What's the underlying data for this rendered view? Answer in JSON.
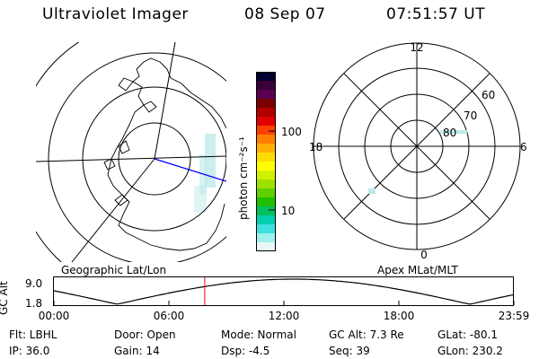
{
  "header": {
    "instrument": "Ultraviolet Imager",
    "date": "08 Sep 07",
    "time": "07:51:57 UT"
  },
  "geo_panel": {
    "label": "Geographic Lat/Lon"
  },
  "mag_panel": {
    "label": "Apex MLat/MLT",
    "mlt_labels": {
      "top": "12",
      "left": "18",
      "right": "6",
      "bottom": "0"
    },
    "lat_labels": [
      "60",
      "70",
      "80"
    ]
  },
  "colorbar": {
    "unit_label": "photon cm⁻²s⁻¹",
    "tick_100": "100",
    "tick_10": "10",
    "colors": [
      "#000033",
      "#3a0038",
      "#5a0050",
      "#7a0000",
      "#b00000",
      "#e00000",
      "#ff4000",
      "#ff8000",
      "#ffb000",
      "#ffdc00",
      "#ffff00",
      "#d0f000",
      "#a0e000",
      "#60d000",
      "#20c000",
      "#00c060",
      "#00d0b0",
      "#40e0e0",
      "#a0f0f0",
      "#e8f8f8"
    ]
  },
  "timeline": {
    "ylabel": "GC Alt",
    "ytick_top": "9.0",
    "ytick_bottom": "1.8",
    "x_ticks": [
      "00:00",
      "06:00",
      "12:00",
      "18:00",
      "23:59"
    ],
    "marker_hour": 7.87
  },
  "info": {
    "flt": "Flt: LBHL",
    "ip": "IP: 36.0",
    "door": "Door: Open",
    "gain": "Gain: 14",
    "mode": "Mode: Normal",
    "dsp": "Dsp:   -4.5",
    "gc_alt": "GC Alt: 7.3 Re",
    "seq": "Seq: 39",
    "glat": "GLat: -80.1",
    "glon": "GLon: 230.2"
  },
  "colors": {
    "marker": "#ff0000",
    "aurora": "#bfeaea"
  }
}
